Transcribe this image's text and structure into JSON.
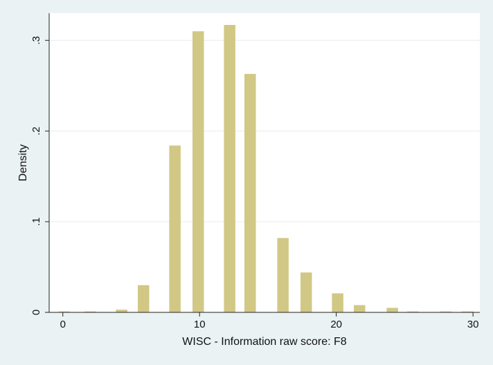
{
  "chart_data": {
    "type": "bar",
    "title": "",
    "xlabel": "WISC - Information raw score: F8",
    "ylabel": "Density",
    "xlim": [
      -1,
      30.5
    ],
    "ylim": [
      0,
      0.33
    ],
    "x_ticks": [
      0,
      10,
      20,
      30
    ],
    "x_tick_labels": [
      "0",
      "10",
      "20",
      "30"
    ],
    "y_ticks": [
      0,
      0.1,
      0.2,
      0.3
    ],
    "y_tick_labels": [
      "0",
      ".1",
      ".2",
      ".3"
    ],
    "grid": "horizontal",
    "bar_color": "#d1c885",
    "plot_background": "#ffffff",
    "outer_background": "#eaf2f3",
    "bars": [
      {
        "x": 0.1,
        "y": 0.001
      },
      {
        "x": 2.0,
        "y": 0.001
      },
      {
        "x": 4.3,
        "y": 0.003
      },
      {
        "x": 5.9,
        "y": 0.03
      },
      {
        "x": 8.2,
        "y": 0.184
      },
      {
        "x": 9.9,
        "y": 0.31
      },
      {
        "x": 12.2,
        "y": 0.317
      },
      {
        "x": 13.7,
        "y": 0.263
      },
      {
        "x": 16.1,
        "y": 0.082
      },
      {
        "x": 17.8,
        "y": 0.044
      },
      {
        "x": 20.1,
        "y": 0.021
      },
      {
        "x": 21.7,
        "y": 0.008
      },
      {
        "x": 24.1,
        "y": 0.005
      },
      {
        "x": 25.6,
        "y": 0.001
      },
      {
        "x": 28.0,
        "y": 0.001
      },
      {
        "x": 29.6,
        "y": 0.001
      }
    ]
  }
}
